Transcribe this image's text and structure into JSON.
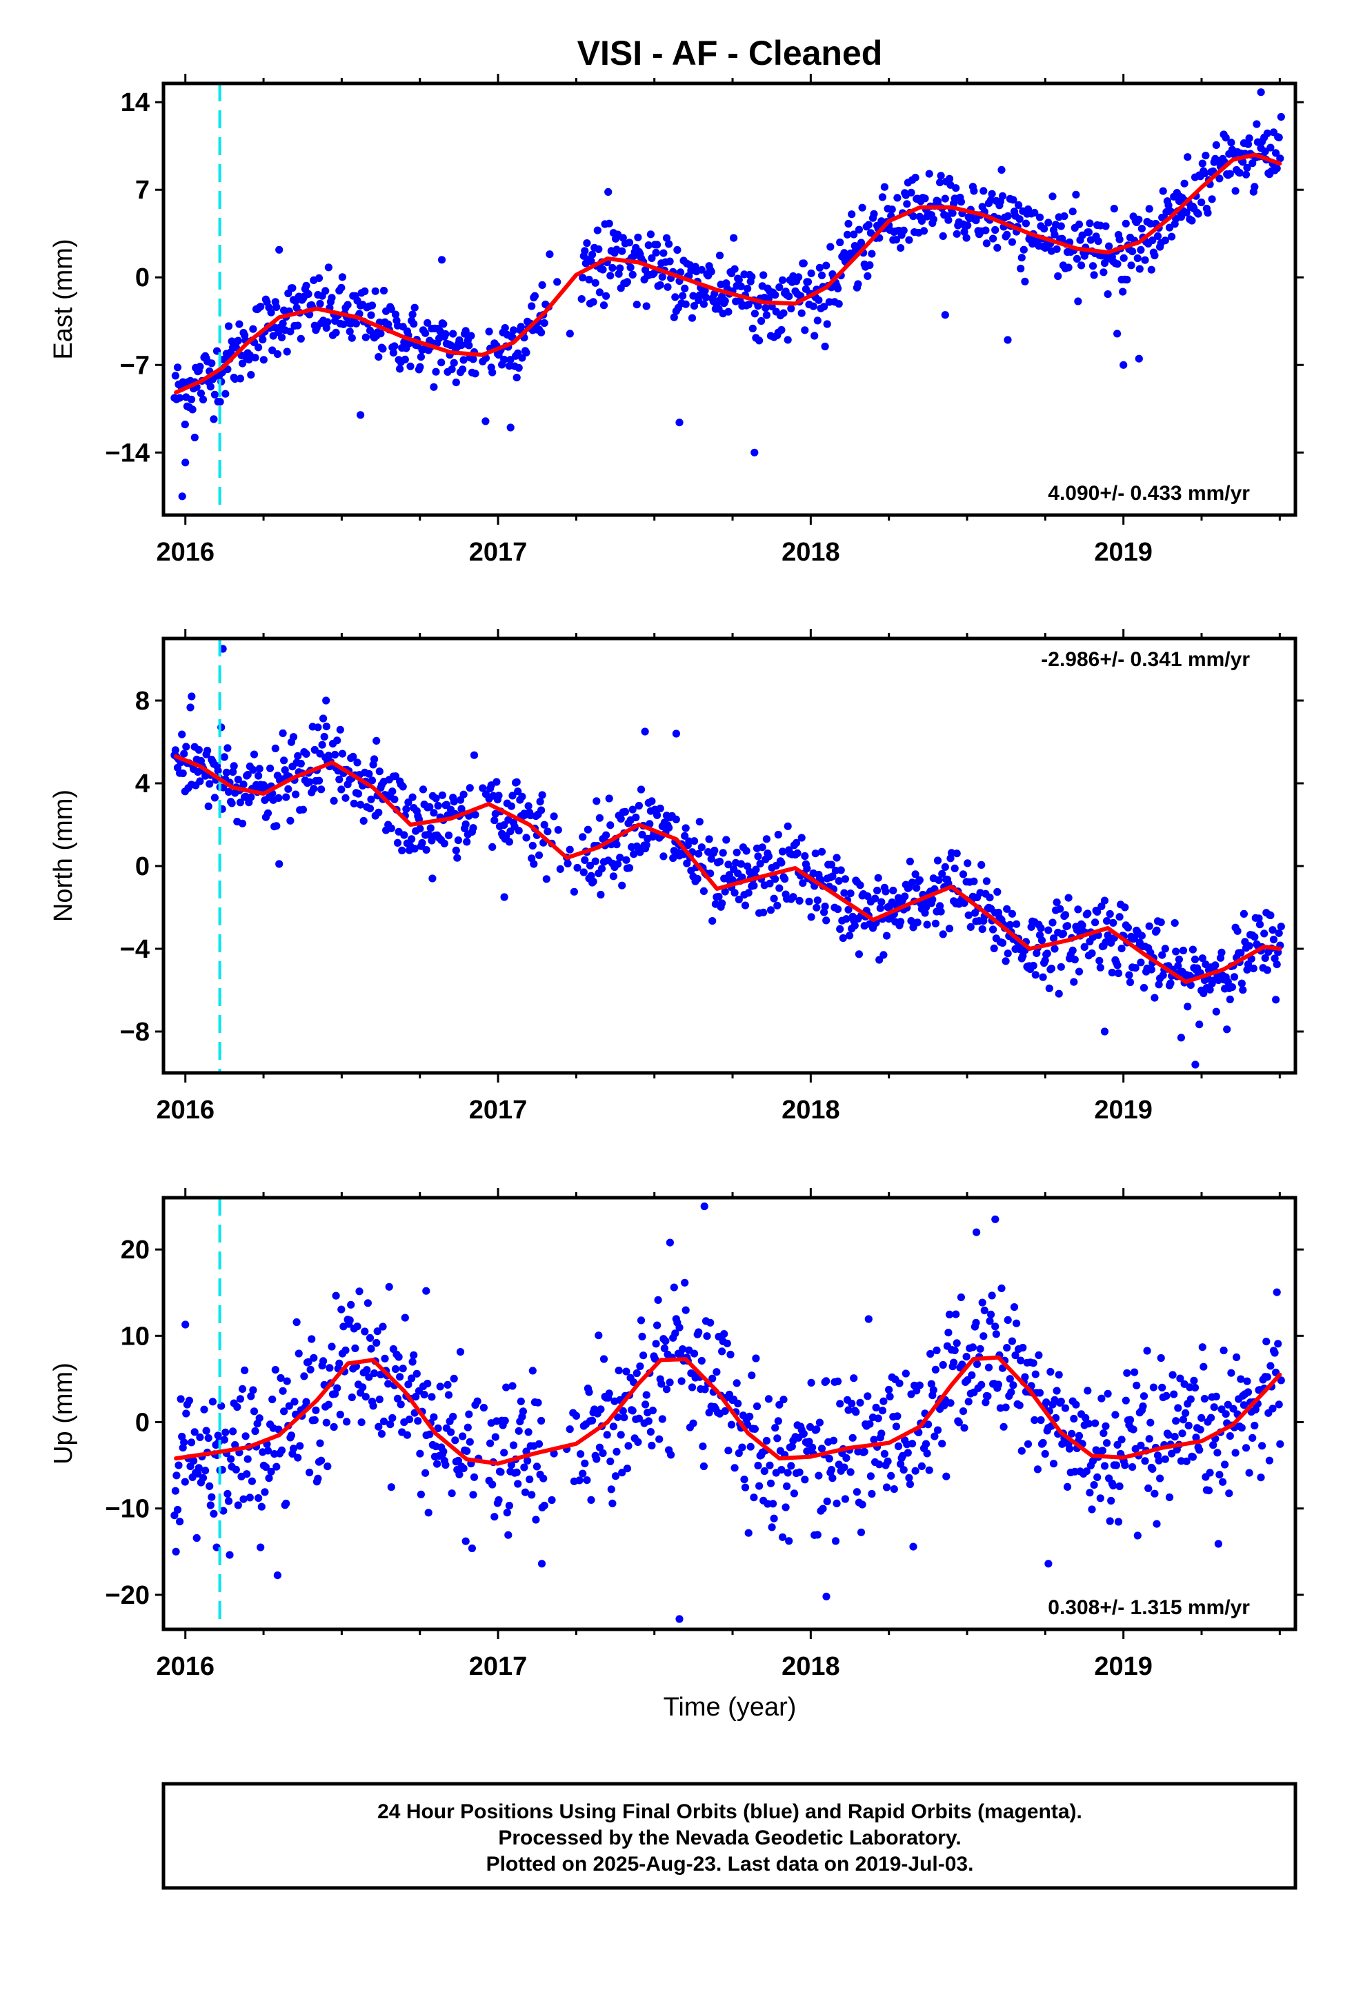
{
  "figure_title": "VISI  - AF - Cleaned",
  "colors": {
    "final_orbit_points": "#0000ff",
    "rapid_orbit_points": "#ff00ff",
    "model_fit": "#ff0000",
    "event_marker": "#00e5ee",
    "frame": "#000000"
  },
  "x_axis_label": "Time (year)",
  "footer": {
    "line1": "24 Hour Positions Using Final Orbits (blue) and Rapid Orbits (magenta).",
    "line2": "Processed by the Nevada Geodetic Laboratory.",
    "line3": "Plotted on 2025-Aug-23. Last data on 2019-Jul-03."
  },
  "chart_data": [
    {
      "type": "scatter",
      "component": "east",
      "ylabel": "East (mm)",
      "xlabel": "",
      "xlim": [
        2015.93,
        2019.55
      ],
      "ylim": [
        -19,
        15.5
      ],
      "xticks": [
        2016,
        2017,
        2018,
        2019
      ],
      "xtick_labels": [
        "2016",
        "2017",
        "2018",
        "2019"
      ],
      "yticks": [
        -14,
        -7,
        0,
        7,
        14
      ],
      "ytick_labels": [
        "−14",
        "−7",
        "0",
        "7",
        "14"
      ],
      "rate_label": "4.090+/- 0.433 mm/yr",
      "rate_position": "bottom-right",
      "event_marker_x": 2016.11,
      "noise_sd": 1.4,
      "outliers": [
        [
          2015.99,
          -17.5
        ],
        [
          2016.0,
          -14.8
        ],
        [
          2016.03,
          -12.8
        ],
        [
          2016.56,
          -11.0
        ],
        [
          2016.96,
          -11.5
        ],
        [
          2017.04,
          -12.0
        ],
        [
          2017.58,
          -11.6
        ],
        [
          2017.82,
          -14.0
        ],
        [
          2018.43,
          -3.0
        ],
        [
          2018.63,
          -5.0
        ],
        [
          2019.0,
          -7.0
        ],
        [
          2019.05,
          -6.5
        ],
        [
          2019.44,
          14.8
        ],
        [
          2017.23,
          -4.5
        ],
        [
          2016.82,
          1.4
        ],
        [
          2016.3,
          2.2
        ],
        [
          2018.98,
          -4.5
        ]
      ],
      "model_fit": {
        "x": [
          2015.97,
          2016.05,
          2016.12,
          2016.2,
          2016.3,
          2016.42,
          2016.55,
          2016.7,
          2016.85,
          2016.95,
          2017.05,
          2017.15,
          2017.25,
          2017.35,
          2017.45,
          2017.55,
          2017.7,
          2017.85,
          2017.95,
          2018.05,
          2018.15,
          2018.25,
          2018.35,
          2018.45,
          2018.55,
          2018.7,
          2018.85,
          2018.95,
          2019.05,
          2019.15,
          2019.25,
          2019.35,
          2019.42,
          2019.5
        ],
        "y": [
          -9.2,
          -8.3,
          -7.2,
          -5.2,
          -3.2,
          -2.5,
          -3.2,
          -4.8,
          -6.0,
          -6.2,
          -5.2,
          -2.8,
          0.2,
          1.5,
          1.2,
          0.3,
          -1.0,
          -2.0,
          -2.1,
          -0.8,
          1.8,
          4.5,
          5.6,
          5.6,
          5.0,
          3.5,
          2.3,
          2.0,
          2.8,
          4.8,
          7.2,
          9.4,
          9.8,
          9.1
        ]
      }
    },
    {
      "type": "scatter",
      "component": "north",
      "ylabel": "North (mm)",
      "xlabel": "",
      "xlim": [
        2015.93,
        2019.55
      ],
      "ylim": [
        -10,
        11
      ],
      "xticks": [
        2016,
        2017,
        2018,
        2019
      ],
      "xtick_labels": [
        "2016",
        "2017",
        "2018",
        "2019"
      ],
      "yticks": [
        -8,
        -4,
        0,
        4,
        8
      ],
      "ytick_labels": [
        "−8",
        "−4",
        "0",
        "4",
        "8"
      ],
      "rate_label": "-2.986+/- 0.341 mm/yr",
      "rate_position": "top-right",
      "event_marker_x": 2016.11,
      "noise_sd": 0.95,
      "outliers": [
        [
          2016.12,
          10.5
        ],
        [
          2016.02,
          8.2
        ],
        [
          2016.45,
          8.0
        ],
        [
          2017.47,
          6.5
        ],
        [
          2017.57,
          6.4
        ],
        [
          2018.94,
          -8.0
        ],
        [
          2019.23,
          -9.6
        ],
        [
          2016.3,
          0.1
        ],
        [
          2017.02,
          -1.5
        ],
        [
          2016.79,
          -0.6
        ]
      ],
      "model_fit": {
        "x": [
          2015.97,
          2016.05,
          2016.15,
          2016.25,
          2016.35,
          2016.47,
          2016.6,
          2016.72,
          2016.85,
          2016.97,
          2017.1,
          2017.22,
          2017.32,
          2017.45,
          2017.57,
          2017.7,
          2017.82,
          2017.95,
          2018.07,
          2018.2,
          2018.32,
          2018.45,
          2018.57,
          2018.7,
          2018.82,
          2018.95,
          2019.07,
          2019.2,
          2019.32,
          2019.45,
          2019.5
        ],
        "y": [
          5.3,
          4.8,
          3.8,
          3.5,
          4.3,
          5.0,
          3.8,
          2.0,
          2.3,
          3.0,
          2.0,
          0.4,
          0.9,
          2.0,
          1.3,
          -1.1,
          -0.6,
          -0.1,
          -1.3,
          -2.6,
          -1.8,
          -1.0,
          -2.4,
          -4.0,
          -3.6,
          -3.0,
          -4.3,
          -5.6,
          -5.0,
          -3.9,
          -4.0
        ]
      }
    },
    {
      "type": "scatter",
      "component": "up",
      "ylabel": "Up (mm)",
      "xlabel": "Time (year)",
      "xlim": [
        2015.93,
        2019.55
      ],
      "ylim": [
        -24,
        26
      ],
      "xticks": [
        2016,
        2017,
        2018,
        2019
      ],
      "xtick_labels": [
        "2016",
        "2017",
        "2018",
        "2019"
      ],
      "yticks": [
        -20,
        -10,
        0,
        10,
        20
      ],
      "ytick_labels": [
        "−20",
        "−10",
        "0",
        "10",
        "20"
      ],
      "rate_label": "0.308+/- 1.315 mm/yr",
      "rate_position": "bottom-right",
      "event_marker_x": 2016.11,
      "noise_sd": 4.3,
      "outliers": [
        [
          2017.66,
          25.0
        ],
        [
          2018.59,
          23.5
        ],
        [
          2017.55,
          20.8
        ],
        [
          2017.58,
          -22.8
        ],
        [
          2018.05,
          -20.2
        ],
        [
          2016.77,
          15.2
        ],
        [
          2018.76,
          -16.4
        ],
        [
          2015.97,
          -15.0
        ],
        [
          2017.14,
          -16.4
        ],
        [
          2018.53,
          22.0
        ],
        [
          2016.0,
          11.3
        ],
        [
          2016.1,
          -14.5
        ]
      ],
      "model_fit": {
        "x": [
          2015.97,
          2016.1,
          2016.2,
          2016.3,
          2016.42,
          2016.52,
          2016.6,
          2016.7,
          2016.8,
          2016.9,
          2017.0,
          2017.12,
          2017.25,
          2017.35,
          2017.45,
          2017.52,
          2017.6,
          2017.7,
          2017.8,
          2017.9,
          2018.0,
          2018.12,
          2018.25,
          2018.35,
          2018.45,
          2018.52,
          2018.6,
          2018.7,
          2018.8,
          2018.9,
          2019.0,
          2019.12,
          2019.25,
          2019.35,
          2019.45,
          2019.5
        ],
        "y": [
          -4.2,
          -3.5,
          -2.9,
          -1.5,
          2.5,
          6.8,
          7.2,
          3.6,
          -1.3,
          -4.3,
          -4.8,
          -3.6,
          -2.5,
          0.0,
          4.5,
          7.2,
          7.3,
          3.6,
          -1.3,
          -4.2,
          -4.0,
          -3.0,
          -2.4,
          -0.5,
          4.3,
          7.3,
          7.5,
          3.7,
          -1.2,
          -3.9,
          -4.1,
          -3.0,
          -2.2,
          -0.3,
          3.5,
          5.5
        ]
      }
    }
  ]
}
